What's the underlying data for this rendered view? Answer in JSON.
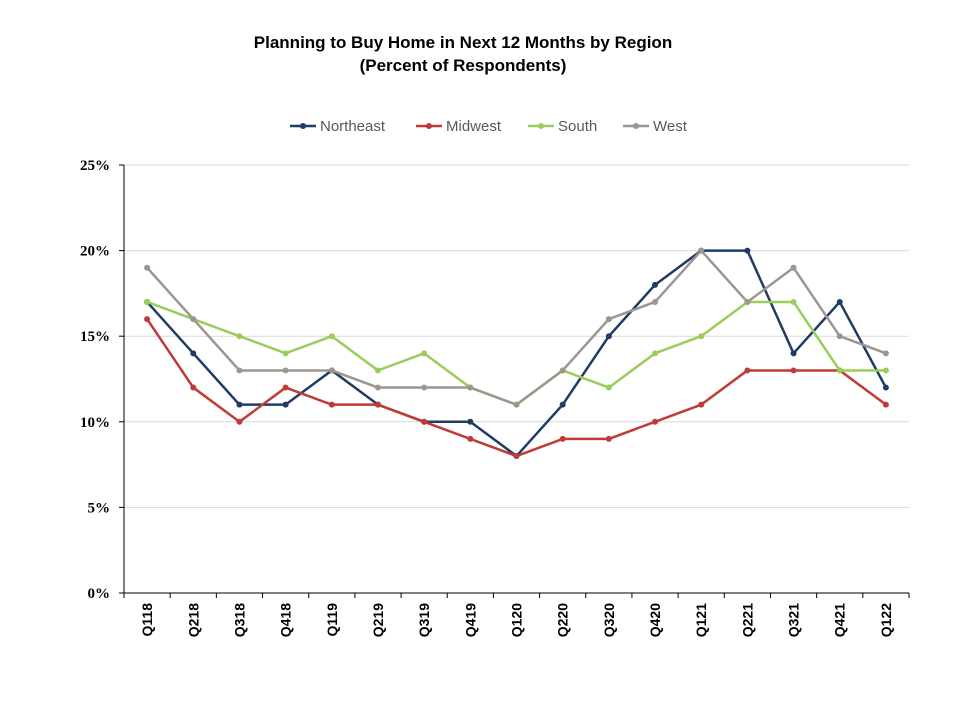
{
  "chart_data": {
    "type": "line",
    "title": "Planning to Buy Home in Next 12 Months by Region",
    "subtitle": "(Percent of Respondents)",
    "xlabel": "",
    "ylabel": "",
    "ylim": [
      0,
      25
    ],
    "yticks": [
      "0%",
      "5%",
      "10%",
      "15%",
      "20%",
      "25%"
    ],
    "ytick_values": [
      0,
      5,
      10,
      15,
      20,
      25
    ],
    "grid": true,
    "legend_position": "top",
    "categories": [
      "Q118",
      "Q218",
      "Q318",
      "Q418",
      "Q119",
      "Q219",
      "Q319",
      "Q419",
      "Q120",
      "Q220",
      "Q320",
      "Q420",
      "Q121",
      "Q221",
      "Q321",
      "Q421",
      "Q122"
    ],
    "series": [
      {
        "name": "Northeast",
        "color": "#1f3d63",
        "values": [
          17,
          14,
          11,
          11,
          13,
          11,
          10,
          10,
          8,
          11,
          15,
          18,
          20,
          20,
          14,
          17,
          12
        ]
      },
      {
        "name": "Midwest",
        "color": "#bf3b36",
        "values": [
          16,
          12,
          10,
          12,
          11,
          11,
          10,
          9,
          8,
          9,
          9,
          10,
          11,
          13,
          13,
          13,
          11
        ]
      },
      {
        "name": "South",
        "color": "#9acd5a",
        "values": [
          17,
          16,
          15,
          14,
          15,
          13,
          14,
          12,
          11,
          13,
          12,
          14,
          15,
          17,
          17,
          13,
          13
        ]
      },
      {
        "name": "West",
        "color": "#9e958e",
        "values": [
          19,
          16,
          13,
          13,
          13,
          12,
          12,
          12,
          11,
          13,
          16,
          17,
          20,
          17,
          19,
          15,
          14
        ]
      }
    ]
  }
}
